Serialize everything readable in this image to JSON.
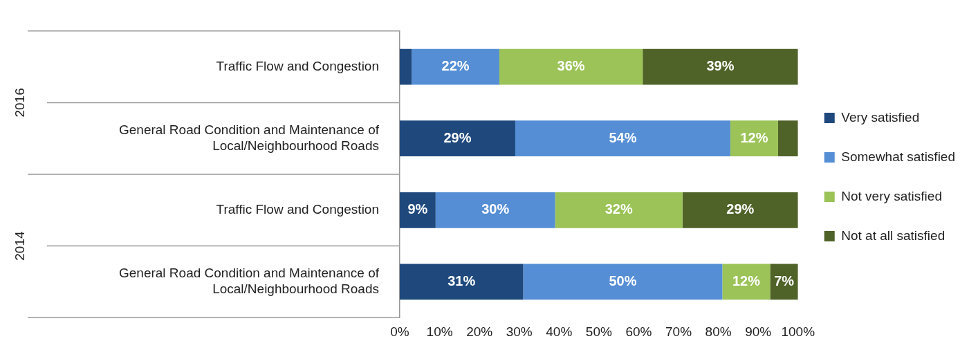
{
  "chart_data": {
    "type": "bar",
    "orientation": "horizontal",
    "stacked": true,
    "categories": [
      "Traffic Flow and Congestion",
      "General Road Condition and Maintenance of Local/Neighbourhood Roads",
      "Traffic Flow and Congestion",
      "General Road Condition and Maintenance of Local/Neighbourhood Roads"
    ],
    "annotations": [
      "2016",
      "2014"
    ],
    "series": [
      {
        "name": "Very satisfied",
        "color": "#1f497d",
        "values": [
          3,
          29,
          9,
          31
        ],
        "value_labels": [
          null,
          "29%",
          "9%",
          "31%"
        ]
      },
      {
        "name": "Somewhat satisfied",
        "color": "#558ed5",
        "values": [
          22,
          54,
          30,
          50
        ],
        "value_labels": [
          "22%",
          "54%",
          "30%",
          "50%"
        ]
      },
      {
        "name": "Not very satisfied",
        "color": "#9bc357",
        "values": [
          36,
          12,
          32,
          12
        ],
        "value_labels": [
          "36%",
          "12%",
          "32%",
          "12%"
        ]
      },
      {
        "name": "Not at all satisfied",
        "color": "#4f6228",
        "values": [
          39,
          5,
          29,
          7
        ],
        "value_labels": [
          "39%",
          null,
          "29%",
          "7%"
        ]
      }
    ],
    "xlim": [
      0,
      100
    ],
    "xticks": [
      {
        "value": 0,
        "label": "0%"
      },
      {
        "value": 10,
        "label": "10%"
      },
      {
        "value": 20,
        "label": "20%"
      },
      {
        "value": 30,
        "label": "30%"
      },
      {
        "value": 40,
        "label": "40%"
      },
      {
        "value": 50,
        "label": "50%"
      },
      {
        "value": 60,
        "label": "60%"
      },
      {
        "value": 70,
        "label": "70%"
      },
      {
        "value": 80,
        "label": "80%"
      },
      {
        "value": 90,
        "label": "90%"
      },
      {
        "value": 100,
        "label": "100%"
      }
    ],
    "grid": false,
    "legend": "right"
  }
}
